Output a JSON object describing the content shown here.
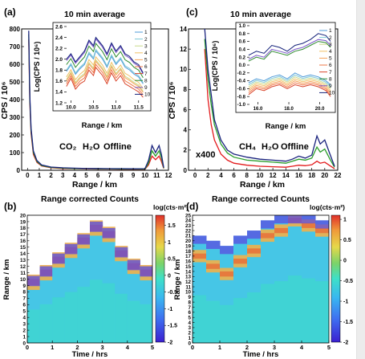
{
  "colors": {
    "co2": "#e31a1c",
    "h2o": "#2a9d2a",
    "offline": "#1f78b4",
    "curve_dark": "#1a237e",
    "series": [
      "#4f9bd9",
      "#7ec7d6",
      "#c9d98a",
      "#f2c166",
      "#f5a25a",
      "#ef7a4a",
      "#d9452b",
      "#2e8b2e",
      "#7a57c9",
      "#14227a"
    ]
  },
  "chart_data": [
    {
      "panel": "(a)",
      "type": "line",
      "title": "10 min average",
      "xlabel": "Range / km",
      "ylabel": "CPS / 10⁶",
      "xlim": [
        -0.5,
        12
      ],
      "ylim": [
        0,
        800
      ],
      "xticks": [
        "0",
        "1",
        "2",
        "3",
        "4",
        "5",
        "6",
        "7",
        "8",
        "9",
        "10",
        "11",
        "12"
      ],
      "yticks": [
        "0",
        "100",
        "200",
        "300",
        "400",
        "500",
        "600",
        "700",
        "800"
      ],
      "legend_words": [
        "CO₂",
        "H₂O",
        "Offline"
      ],
      "series": [
        {
          "name": "Offline",
          "x": [
            0.1,
            0.2,
            0.3,
            0.5,
            0.8,
            1.2,
            2,
            3,
            4,
            5,
            6,
            7,
            8,
            9,
            10,
            10.3,
            10.6,
            10.9,
            11.2,
            11.4,
            11.6
          ],
          "values": [
            790,
            420,
            240,
            110,
            55,
            30,
            18,
            14,
            12,
            10,
            10,
            9,
            9,
            8,
            9,
            55,
            140,
            100,
            140,
            90,
            15
          ]
        },
        {
          "name": "H₂O",
          "x": [
            0.1,
            0.2,
            0.3,
            0.5,
            0.8,
            1.2,
            2,
            3,
            4,
            5,
            6,
            7,
            8,
            9,
            10,
            10.3,
            10.6,
            10.9,
            11.2,
            11.4,
            11.6
          ],
          "values": [
            770,
            400,
            225,
            100,
            50,
            27,
            16,
            12,
            10,
            9,
            8,
            8,
            7,
            7,
            7,
            40,
            110,
            80,
            110,
            70,
            12
          ]
        },
        {
          "name": "CO₂",
          "x": [
            0.1,
            0.2,
            0.3,
            0.5,
            0.8,
            1.2,
            2,
            3,
            4,
            5,
            6,
            7,
            8,
            9,
            10,
            10.3,
            10.6,
            10.9,
            11.2,
            11.4,
            11.6
          ],
          "values": [
            740,
            380,
            210,
            90,
            45,
            24,
            14,
            10,
            9,
            8,
            7,
            7,
            6,
            6,
            6,
            30,
            80,
            60,
            80,
            50,
            10
          ]
        }
      ],
      "inset": {
        "xlabel": "Range / km",
        "ylabel": "Log(CPS / 10⁶)",
        "xlim": [
          9.85,
          11.7
        ],
        "ylim": [
          1.2,
          2.6
        ],
        "xticks": [
          "10.0",
          "10.5",
          "11.0",
          "11.5"
        ],
        "yticks": [
          "1.2",
          "1.4",
          "1.6",
          "1.8",
          "2.0",
          "2.2",
          "2.4",
          "2.6"
        ],
        "legend": [
          "1",
          "2",
          "3",
          "4",
          "5",
          "6",
          "7",
          "8",
          "9",
          "10"
        ],
        "x": [
          9.9,
          10.0,
          10.1,
          10.2,
          10.3,
          10.4,
          10.5,
          10.55,
          10.6,
          10.7,
          10.8,
          10.9,
          11.0,
          11.1,
          11.2,
          11.3,
          11.4,
          11.5,
          11.6
        ],
        "top_values": [
          2.0,
          2.1,
          1.95,
          2.05,
          2.15,
          2.35,
          2.25,
          2.4,
          2.35,
          2.25,
          2.1,
          2.3,
          2.15,
          2.25,
          2.1,
          2.05,
          1.95,
          1.9,
          1.75
        ],
        "bottom_values": [
          1.5,
          1.65,
          1.45,
          1.55,
          1.6,
          1.8,
          1.7,
          1.85,
          1.8,
          1.7,
          1.55,
          1.75,
          1.6,
          1.7,
          1.55,
          1.5,
          1.45,
          1.4,
          1.3
        ]
      }
    },
    {
      "panel": "(c)",
      "type": "line",
      "title": "10 min average",
      "xlabel": "Range / km",
      "ylabel": "CPS / 10⁶",
      "xlim": [
        -1,
        22
      ],
      "ylim": [
        0,
        14
      ],
      "xticks": [
        "0",
        "2",
        "4",
        "6",
        "8",
        "10",
        "12",
        "14",
        "16",
        "18",
        "20",
        "22"
      ],
      "yticks": [
        "0",
        "2",
        "4",
        "6",
        "8",
        "10",
        "12",
        "14"
      ],
      "annotation": "x400",
      "legend_words": [
        "CH₄",
        "H₂O",
        "Offline"
      ],
      "series": [
        {
          "name": "Offline",
          "x": [
            1.5,
            2,
            2.5,
            3,
            4,
            5,
            6,
            8,
            10,
            12,
            14,
            15,
            16,
            17,
            18,
            18.8,
            19.3,
            20,
            20.8,
            21.5
          ],
          "values": [
            14,
            10,
            7.5,
            5,
            3,
            2,
            1.6,
            1.3,
            1.1,
            1.0,
            0.9,
            1.1,
            1.4,
            1.2,
            1.5,
            3.4,
            2.6,
            3.0,
            1.6,
            0.4
          ]
        },
        {
          "name": "H₂O",
          "x": [
            1.5,
            2,
            2.5,
            3,
            4,
            5,
            6,
            8,
            10,
            12,
            14,
            15,
            16,
            17,
            18,
            18.8,
            19.3,
            20,
            20.8,
            21.5
          ],
          "values": [
            13,
            9,
            6.5,
            4.5,
            2.6,
            1.7,
            1.3,
            1.0,
            0.9,
            0.8,
            0.7,
            0.9,
            1.1,
            1.0,
            1.2,
            2.3,
            1.8,
            2.1,
            1.1,
            0.3
          ]
        },
        {
          "name": "CH₄",
          "x": [
            1.5,
            2,
            2.5,
            3,
            4,
            5,
            6,
            8,
            10,
            12,
            14,
            15,
            16,
            17,
            18,
            18.8,
            19.3,
            20,
            20.8,
            21.5
          ],
          "values": [
            12,
            7,
            4.5,
            3,
            1.6,
            1.0,
            0.7,
            0.5,
            0.4,
            0.35,
            0.3,
            0.4,
            0.5,
            0.45,
            0.55,
            0.9,
            0.7,
            0.8,
            0.45,
            0.15
          ]
        }
      ],
      "inset": {
        "xlabel": "Range / km",
        "ylabel": "Log(CPS / 10⁶)",
        "xlim": [
          15.3,
          20.8
        ],
        "ylim": [
          -1.0,
          1.0
        ],
        "xticks": [
          "16.0",
          "18.0",
          "20.0"
        ],
        "yticks": [
          "-1.0",
          "-0.8",
          "-0.6",
          "-0.4",
          "-0.2",
          "0.0",
          "0.2",
          "0.4",
          "0.6",
          "0.8",
          "1.0"
        ],
        "legend": [
          "1",
          "2",
          "3",
          "4",
          "5",
          "6",
          "7",
          "8",
          "9",
          "10"
        ],
        "x": [
          15.4,
          15.9,
          16.4,
          16.9,
          17.4,
          17.9,
          18.4,
          18.9,
          19.4,
          19.9,
          20.4,
          20.7
        ],
        "top_values": [
          0.25,
          0.35,
          0.3,
          0.5,
          0.45,
          0.35,
          0.5,
          0.55,
          0.65,
          0.8,
          0.75,
          0.6
        ],
        "mid_values": [
          0.15,
          0.25,
          0.2,
          0.4,
          0.35,
          0.3,
          0.4,
          0.45,
          0.55,
          0.65,
          0.62,
          0.5
        ],
        "upper_band": [
          -0.45,
          -0.35,
          -0.4,
          -0.3,
          -0.25,
          -0.35,
          -0.2,
          -0.3,
          -0.25,
          -0.3,
          -0.4,
          -0.5
        ],
        "lower_band": [
          -0.75,
          -0.6,
          -0.65,
          -0.55,
          -0.5,
          -0.6,
          -0.5,
          -0.55,
          -0.5,
          -0.55,
          -0.65,
          -0.8
        ]
      }
    },
    {
      "panel": "(b)",
      "type": "heatmap",
      "title": "Range corrected Counts",
      "xlabel": "Time / hrs",
      "ylabel": "Range / km",
      "xlim": [
        0,
        5
      ],
      "ylim": [
        0,
        20
      ],
      "xticks": [
        "0",
        "1",
        "2",
        "3",
        "4",
        "5"
      ],
      "yticks": [
        "0",
        "1",
        "2",
        "3",
        "4",
        "5",
        "6",
        "7",
        "8",
        "9",
        "10",
        "11",
        "12",
        "13",
        "14",
        "15",
        "16",
        "17",
        "18",
        "19",
        "20"
      ],
      "colorbar_label": "log(cts·m²)",
      "colorbar_ticks": [
        "1.5",
        "1",
        "0.5",
        "0",
        "-0.5",
        "-1",
        "-1.5",
        "-2"
      ],
      "clim": [
        -2,
        1.8
      ],
      "time_hrs": [
        0.25,
        0.75,
        1.25,
        1.75,
        2.25,
        2.75,
        3.25,
        3.75,
        4.25,
        4.75
      ],
      "top_km": [
        10.5,
        12,
        14,
        15.5,
        17,
        19,
        18,
        15,
        13,
        12
      ],
      "layer_km": [
        9.5,
        11,
        13,
        14.5,
        16,
        18,
        17,
        14,
        12,
        11
      ]
    },
    {
      "panel": "(d)",
      "type": "heatmap",
      "title": "Range corrected Counts",
      "xlabel": "Time / hrs",
      "ylabel": "Range / km",
      "xlim": [
        0,
        5
      ],
      "ylim": [
        0,
        25
      ],
      "xticks": [
        "0",
        "1",
        "2",
        "3",
        "4",
        "5"
      ],
      "yticks": [
        "0",
        "1",
        "2",
        "3",
        "4",
        "5",
        "6",
        "7",
        "8",
        "9",
        "10",
        "11",
        "12",
        "13",
        "14",
        "15",
        "16",
        "17",
        "18",
        "19",
        "20",
        "21",
        "22",
        "23",
        "24",
        "25"
      ],
      "colorbar_label": "log(cts·m²)",
      "colorbar_ticks": [
        "1",
        "0.5",
        "0",
        "-0.5",
        "-1",
        "-1.5",
        "-2"
      ],
      "clim": [
        -2,
        1.1
      ],
      "time_hrs": [
        0.25,
        0.75,
        1.25,
        1.75,
        2.25,
        2.75,
        3.25,
        3.75,
        4.25,
        4.75
      ],
      "top_km": [
        21,
        20,
        19,
        21,
        22,
        24,
        25,
        25,
        25,
        24
      ],
      "layer_km": [
        17,
        15,
        13.5,
        16,
        18,
        21,
        22,
        24,
        23,
        22
      ]
    }
  ]
}
